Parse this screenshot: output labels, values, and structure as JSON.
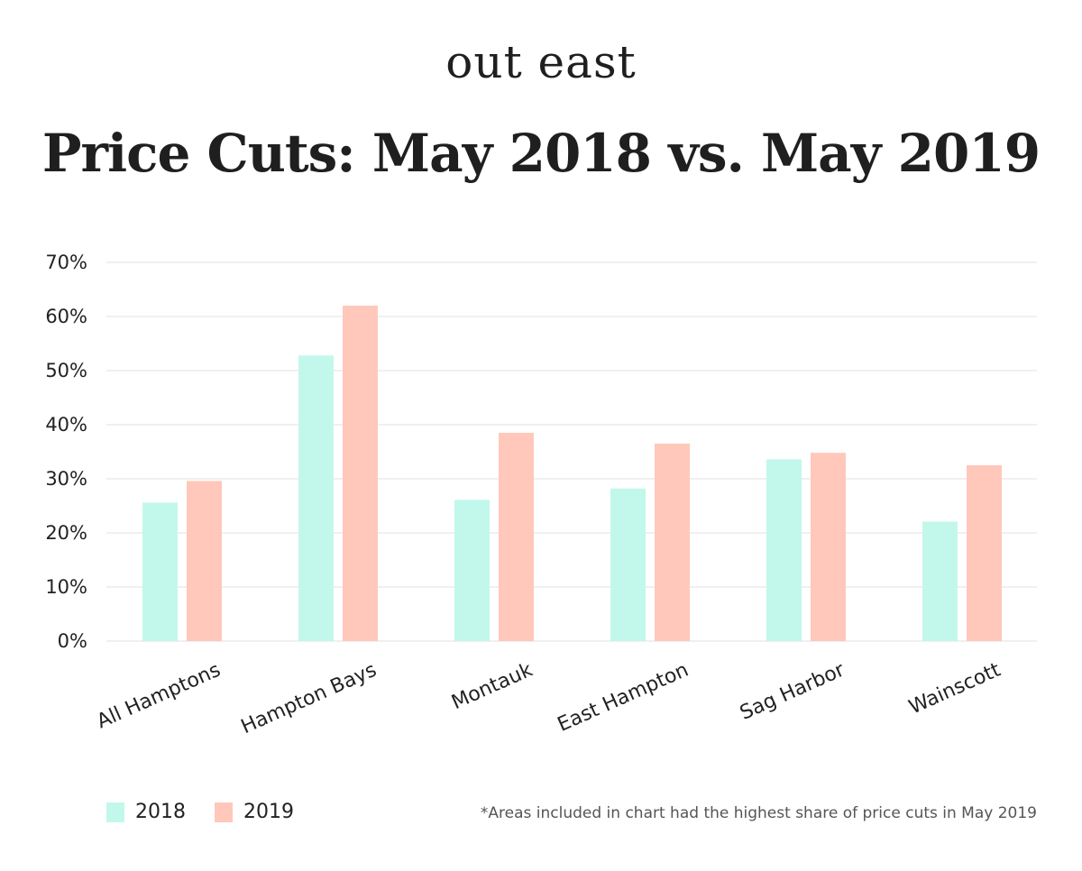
{
  "header": {
    "brand": "out east",
    "title": "Price Cuts: May 2018 vs. May 2019"
  },
  "footnote": "*Areas included in chart had the highest share of price cuts in May 2019",
  "chart_data": {
    "type": "bar",
    "categories": [
      "All Hamptons",
      "Hampton Bays",
      "Montauk",
      "East Hampton",
      "Sag Harbor",
      "Wainscott"
    ],
    "series": [
      {
        "name": "2018",
        "color": "#c2f8eb",
        "values": [
          25.6,
          52.8,
          26.1,
          28.2,
          33.6,
          22.1
        ]
      },
      {
        "name": "2019",
        "color": "#ffc8bb",
        "values": [
          29.6,
          62.0,
          38.5,
          36.5,
          34.8,
          32.5
        ]
      }
    ],
    "ylim": [
      0,
      70
    ],
    "yticks": [
      0,
      10,
      20,
      30,
      40,
      50,
      60,
      70
    ],
    "ytick_format": "%",
    "grid": true,
    "legend": "bottom-left",
    "xlabel": "",
    "ylabel": ""
  }
}
